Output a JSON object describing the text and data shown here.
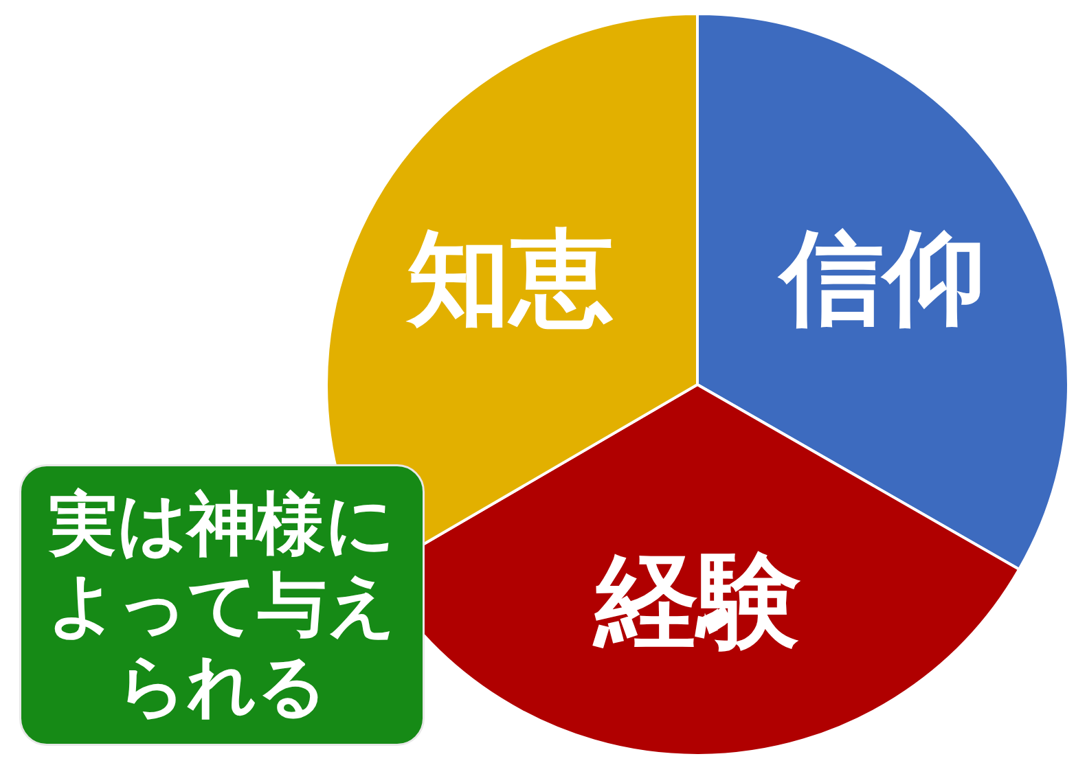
{
  "chart_data": {
    "type": "pie",
    "categories": [
      "信仰",
      "経験",
      "知恵"
    ],
    "values": [
      33.3,
      33.3,
      33.4
    ],
    "colors": [
      "#3d6bbf",
      "#b00000",
      "#e2b000"
    ],
    "annotations": [
      "実は神様によって与えられる"
    ]
  }
}
